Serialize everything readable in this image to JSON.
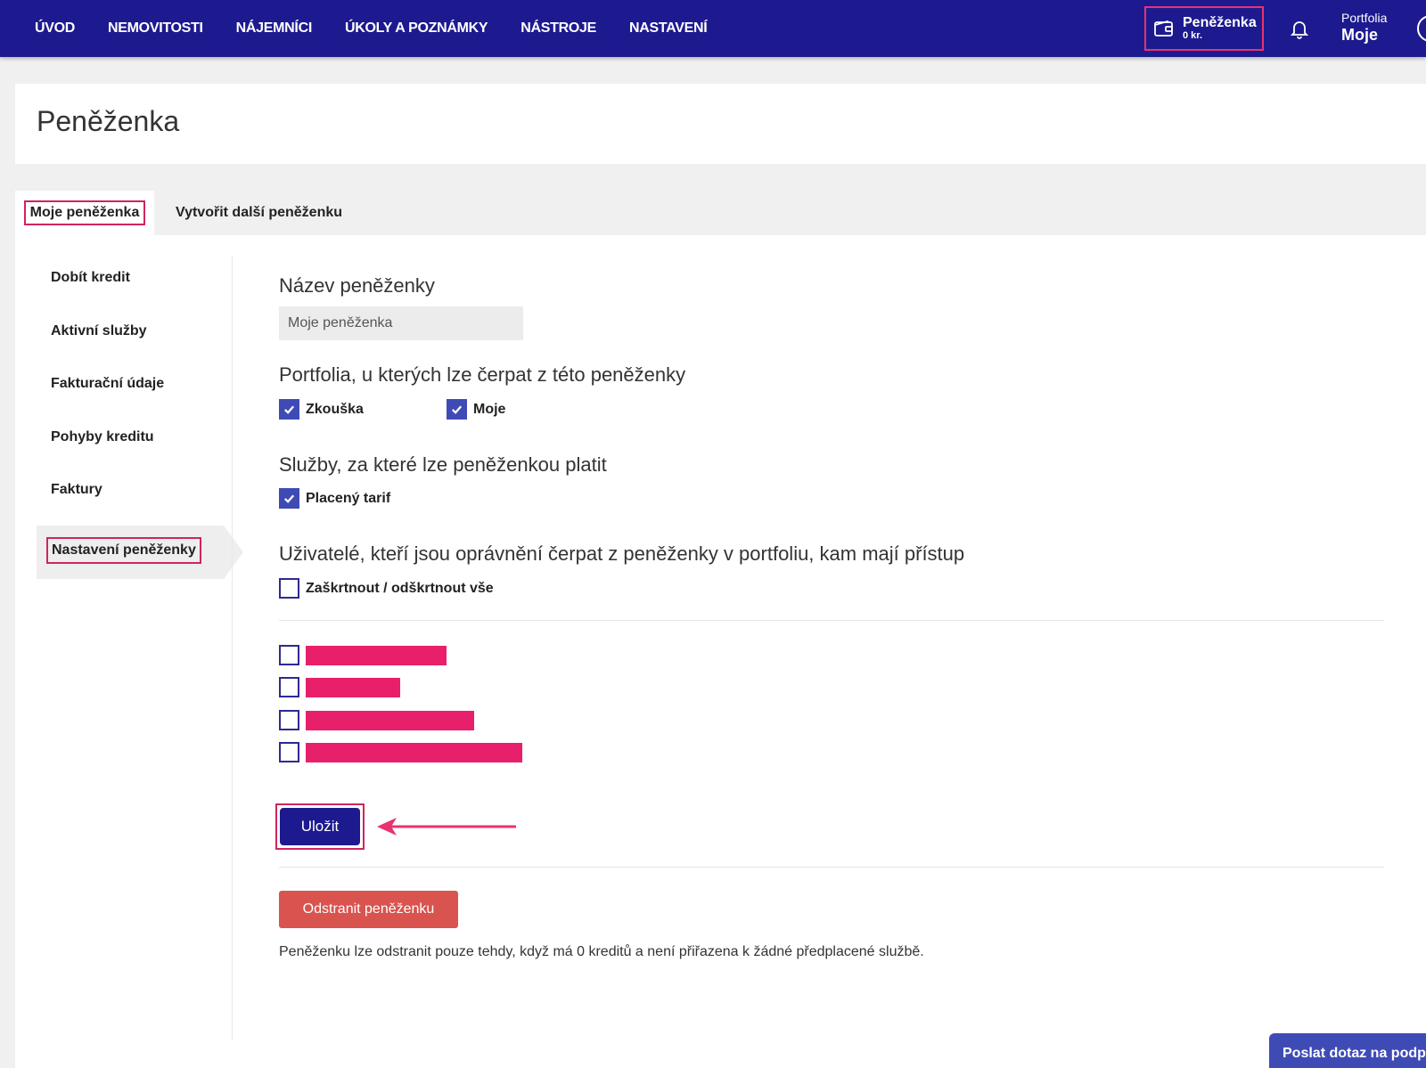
{
  "nav": {
    "items": [
      "ÚVOD",
      "NEMOVITOSTI",
      "NÁJEMNÍCI",
      "ÚKOLY A POZNÁMKY",
      "NÁSTROJE",
      "NASTAVENÍ"
    ]
  },
  "wallet": {
    "title": "Peněženka",
    "amount": "0 kr."
  },
  "portfolio": {
    "label": "Portfolia",
    "value": "Moje"
  },
  "page": {
    "title": "Peněženka"
  },
  "tabs": [
    {
      "label": "Moje peněženka",
      "active": true
    },
    {
      "label": "Vytvořit další peněženku",
      "active": false
    }
  ],
  "sidebar": {
    "items": [
      "Dobít kredit",
      "Aktivní služby",
      "Fakturační údaje",
      "Pohyby kreditu",
      "Faktury"
    ],
    "active": "Nastavení peněženky"
  },
  "form": {
    "wallet_name_title": "Název peněženky",
    "wallet_name_value": "Moje peněženka",
    "portfolios_title": "Portfolia, u kterých lze čerpat z této peněženky",
    "portfolios": [
      {
        "label": "Zkouška",
        "checked": true
      },
      {
        "label": "Moje",
        "checked": true
      }
    ],
    "services_title": "Služby, za které lze peněženkou platit",
    "services": [
      {
        "label": "Placený tarif",
        "checked": true
      }
    ],
    "users_title": "Uživatelé, kteří jsou oprávnění čerpat z peněženky v portfoliu, kam mají přístup",
    "toggle_all": "Zaškrtnout / odškrtnout vše",
    "users_count_redacted": 4,
    "save": "Uložit",
    "delete": "Odstranit peněženku",
    "delete_note": "Peněženku lze odstranit pouze tehdy, když má 0 kreditů a není přiřazena k žádné předplacené službě."
  },
  "support": {
    "label": "Poslat dotaz na podporu"
  },
  "colors": {
    "primary": "#1d1a8f",
    "highlight": "#d0245d",
    "redaction": "#e8206b",
    "danger": "#d9534f",
    "checkbox": "#3f4bb5"
  }
}
